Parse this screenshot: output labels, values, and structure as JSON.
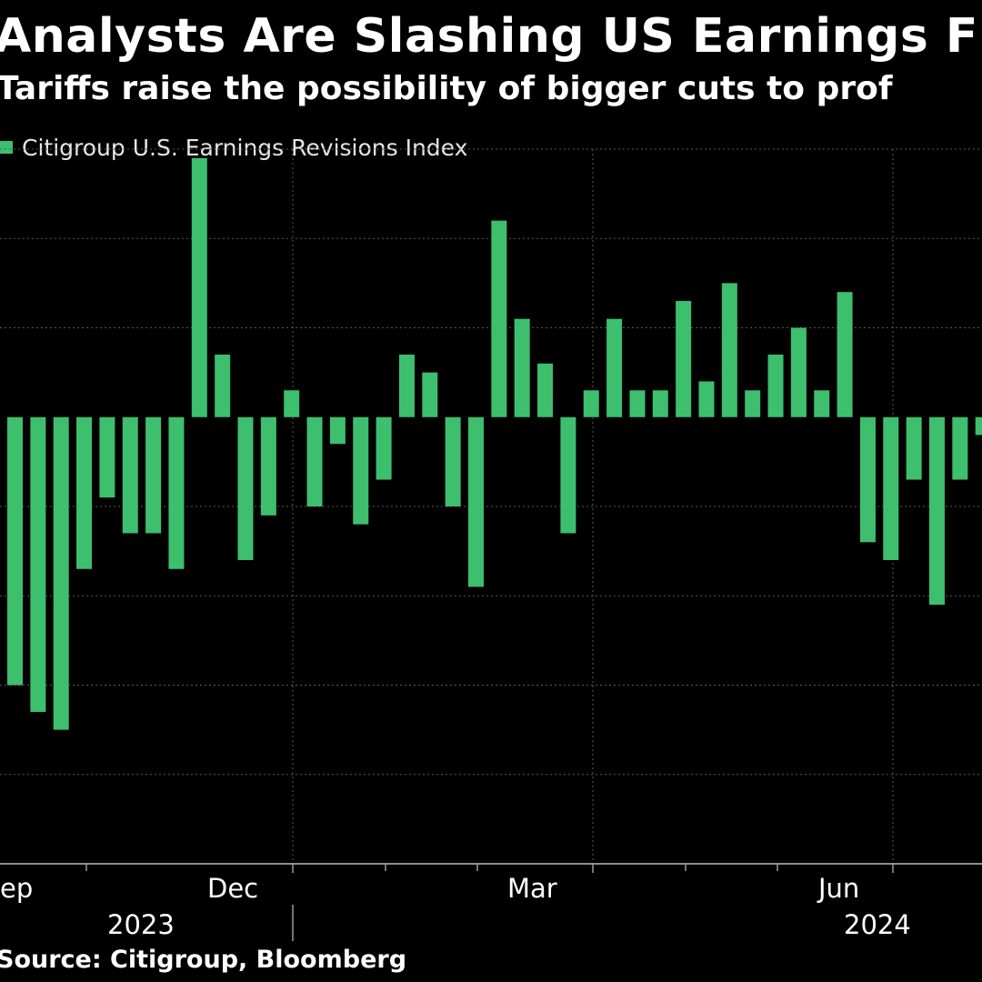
{
  "title": "Analysts Are Slashing US Earnings F",
  "subtitle": "Tariffs raise the possibility of bigger cuts to prof",
  "source": "Source: Citigroup, Bloomberg",
  "colors": {
    "bar": "#3dbf6e",
    "background": "#000000",
    "grid": "#5a5a5a",
    "text": "#ffffff"
  },
  "chart_data": {
    "type": "bar",
    "title": "Analysts Are Slashing US Earnings F",
    "subtitle": "Tariffs raise the possibility of bigger cuts to prof",
    "legend": [
      "Citigroup U.S. Earnings Revisions Index"
    ],
    "legend_position": "top-left",
    "grid": true,
    "xlabel": "",
    "ylabel": "",
    "ylim": [
      -5,
      3
    ],
    "x_tick_labels": [
      "ep",
      "Dec",
      "Mar",
      "Jun"
    ],
    "year_labels": [
      "2023",
      "2024"
    ],
    "series": [
      {
        "name": "Citigroup U.S. Earnings Revisions Index",
        "values": [
          -3.0,
          -3.3,
          -3.5,
          -1.7,
          -0.9,
          -1.3,
          -1.3,
          -1.7,
          2.9,
          0.7,
          -1.6,
          -1.1,
          0.3,
          -1.0,
          -0.3,
          -1.2,
          -0.7,
          0.7,
          0.5,
          -1.0,
          -1.9,
          2.2,
          1.1,
          0.6,
          -1.3,
          0.3,
          1.1,
          0.3,
          0.3,
          1.3,
          0.4,
          1.5,
          0.3,
          0.7,
          1.0,
          0.3,
          1.4,
          -1.4,
          -1.6,
          -0.7,
          -2.1,
          -0.7,
          -0.2
        ]
      }
    ]
  }
}
